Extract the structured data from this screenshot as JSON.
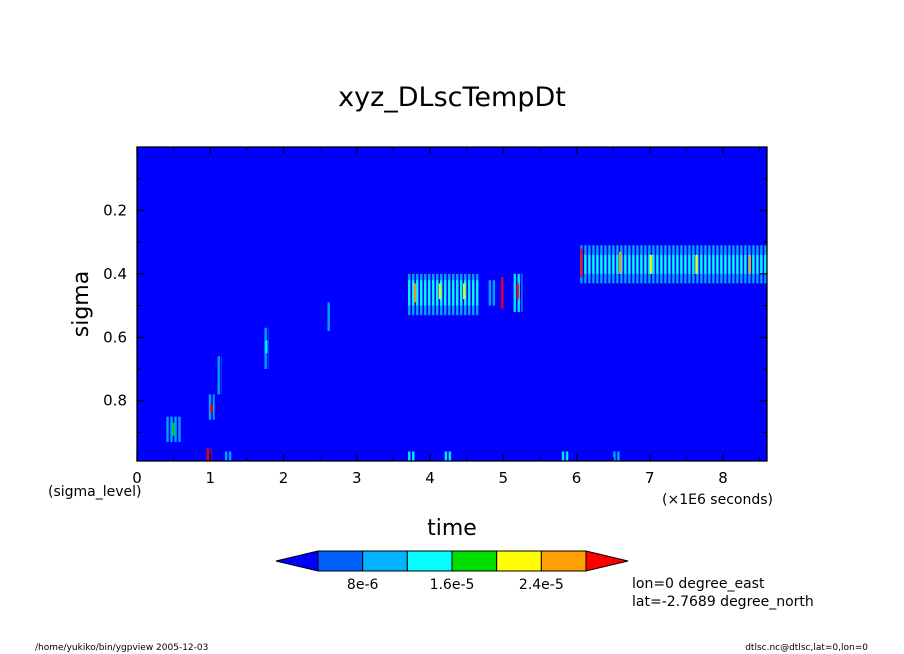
{
  "chart_data": {
    "type": "heatmap",
    "title": "xyz_DLscTempDt",
    "xlabel": "time",
    "x_sublabel_left": "(sigma_level)",
    "x_unit_label": "(×1E6 seconds)",
    "ylabel": "sigma",
    "xlim": [
      0,
      8.6
    ],
    "ylim": [
      0.0,
      0.99
    ],
    "y_inverted": true,
    "x_ticks": [
      {
        "v": 0,
        "label": "0"
      },
      {
        "v": 1,
        "label": "1"
      },
      {
        "v": 2,
        "label": "2"
      },
      {
        "v": 3,
        "label": "3"
      },
      {
        "v": 4,
        "label": "4"
      },
      {
        "v": 5,
        "label": "5"
      },
      {
        "v": 6,
        "label": "6"
      },
      {
        "v": 7,
        "label": "7"
      },
      {
        "v": 8,
        "label": "8"
      }
    ],
    "y_ticks": [
      {
        "v": 0.2,
        "label": "0.2"
      },
      {
        "v": 0.4,
        "label": "0.4"
      },
      {
        "v": 0.6,
        "label": "0.6"
      },
      {
        "v": 0.8,
        "label": "0.8"
      }
    ],
    "background_color": "#0000ff",
    "colorbar": {
      "colors": [
        "#0000ff",
        "#0060ff",
        "#00b4ff",
        "#00ffff",
        "#00e000",
        "#ffff00",
        "#ffa000",
        "#ff0000"
      ],
      "tick_labels": [
        "8e-6",
        "1.6e-5",
        "2.4e-5"
      ],
      "levels": [
        8e-06,
        1.6e-05,
        2.4e-05
      ]
    },
    "cells": [
      {
        "x0": 3.7,
        "x1": 4.66,
        "y0": 0.4,
        "y1": 0.53,
        "level": 2
      },
      {
        "x0": 3.7,
        "x1": 4.66,
        "y0": 0.42,
        "y1": 0.5,
        "level": 3
      },
      {
        "x0": 3.78,
        "x1": 3.82,
        "y0": 0.43,
        "y1": 0.49,
        "level": 6
      },
      {
        "x0": 4.12,
        "x1": 4.16,
        "y0": 0.43,
        "y1": 0.48,
        "level": 5
      },
      {
        "x0": 4.45,
        "x1": 4.5,
        "y0": 0.43,
        "y1": 0.48,
        "level": 5
      },
      {
        "x0": 4.8,
        "x1": 4.9,
        "y0": 0.42,
        "y1": 0.5,
        "level": 2
      },
      {
        "x0": 4.97,
        "x1": 5.01,
        "y0": 0.41,
        "y1": 0.51,
        "level": 7
      },
      {
        "x0": 5.14,
        "x1": 5.26,
        "y0": 0.4,
        "y1": 0.52,
        "level": 3
      },
      {
        "x0": 5.18,
        "x1": 5.22,
        "y0": 0.43,
        "y1": 0.48,
        "level": 7
      },
      {
        "x0": 6.05,
        "x1": 8.6,
        "y0": 0.31,
        "y1": 0.43,
        "level": 2
      },
      {
        "x0": 6.05,
        "x1": 8.6,
        "y0": 0.34,
        "y1": 0.4,
        "level": 3
      },
      {
        "x0": 6.05,
        "x1": 6.09,
        "y0": 0.32,
        "y1": 0.41,
        "level": 7
      },
      {
        "x0": 6.58,
        "x1": 6.62,
        "y0": 0.33,
        "y1": 0.4,
        "level": 6
      },
      {
        "x0": 7.0,
        "x1": 7.04,
        "y0": 0.34,
        "y1": 0.4,
        "level": 5
      },
      {
        "x0": 7.62,
        "x1": 7.66,
        "y0": 0.34,
        "y1": 0.4,
        "level": 5
      },
      {
        "x0": 8.35,
        "x1": 8.4,
        "y0": 0.34,
        "y1": 0.4,
        "level": 6
      },
      {
        "x0": 0.4,
        "x1": 0.6,
        "y0": 0.85,
        "y1": 0.93,
        "level": 2
      },
      {
        "x0": 0.48,
        "x1": 0.52,
        "y0": 0.87,
        "y1": 0.91,
        "level": 4
      },
      {
        "x0": 0.98,
        "x1": 1.06,
        "y0": 0.78,
        "y1": 0.86,
        "level": 2
      },
      {
        "x0": 1.0,
        "x1": 1.04,
        "y0": 0.81,
        "y1": 0.84,
        "level": 7
      },
      {
        "x0": 1.1,
        "x1": 1.16,
        "y0": 0.66,
        "y1": 0.78,
        "level": 2
      },
      {
        "x0": 1.74,
        "x1": 1.8,
        "y0": 0.57,
        "y1": 0.7,
        "level": 2
      },
      {
        "x0": 1.75,
        "x1": 1.79,
        "y0": 0.61,
        "y1": 0.65,
        "level": 3
      },
      {
        "x0": 2.6,
        "x1": 2.64,
        "y0": 0.49,
        "y1": 0.58,
        "level": 2
      },
      {
        "x0": 0.95,
        "x1": 1.02,
        "y0": 0.95,
        "y1": 0.99,
        "level": 7
      },
      {
        "x0": 1.2,
        "x1": 1.3,
        "y0": 0.96,
        "y1": 0.99,
        "level": 2
      },
      {
        "x0": 3.7,
        "x1": 3.8,
        "y0": 0.96,
        "y1": 0.99,
        "level": 3
      },
      {
        "x0": 4.2,
        "x1": 4.3,
        "y0": 0.96,
        "y1": 0.99,
        "level": 3
      },
      {
        "x0": 5.8,
        "x1": 5.9,
        "y0": 0.96,
        "y1": 0.99,
        "level": 3
      },
      {
        "x0": 6.5,
        "x1": 6.6,
        "y0": 0.96,
        "y1": 0.99,
        "level": 2
      }
    ],
    "annotations": {
      "lon": "lon=0 degree_east",
      "lat": "lat=-2.7689 degree_north"
    }
  },
  "footer": {
    "left": "/home/yukiko/bin/ygpview  2005-12-03",
    "right": "dtlsc.nc@dtlsc,lat=0,lon=0"
  }
}
